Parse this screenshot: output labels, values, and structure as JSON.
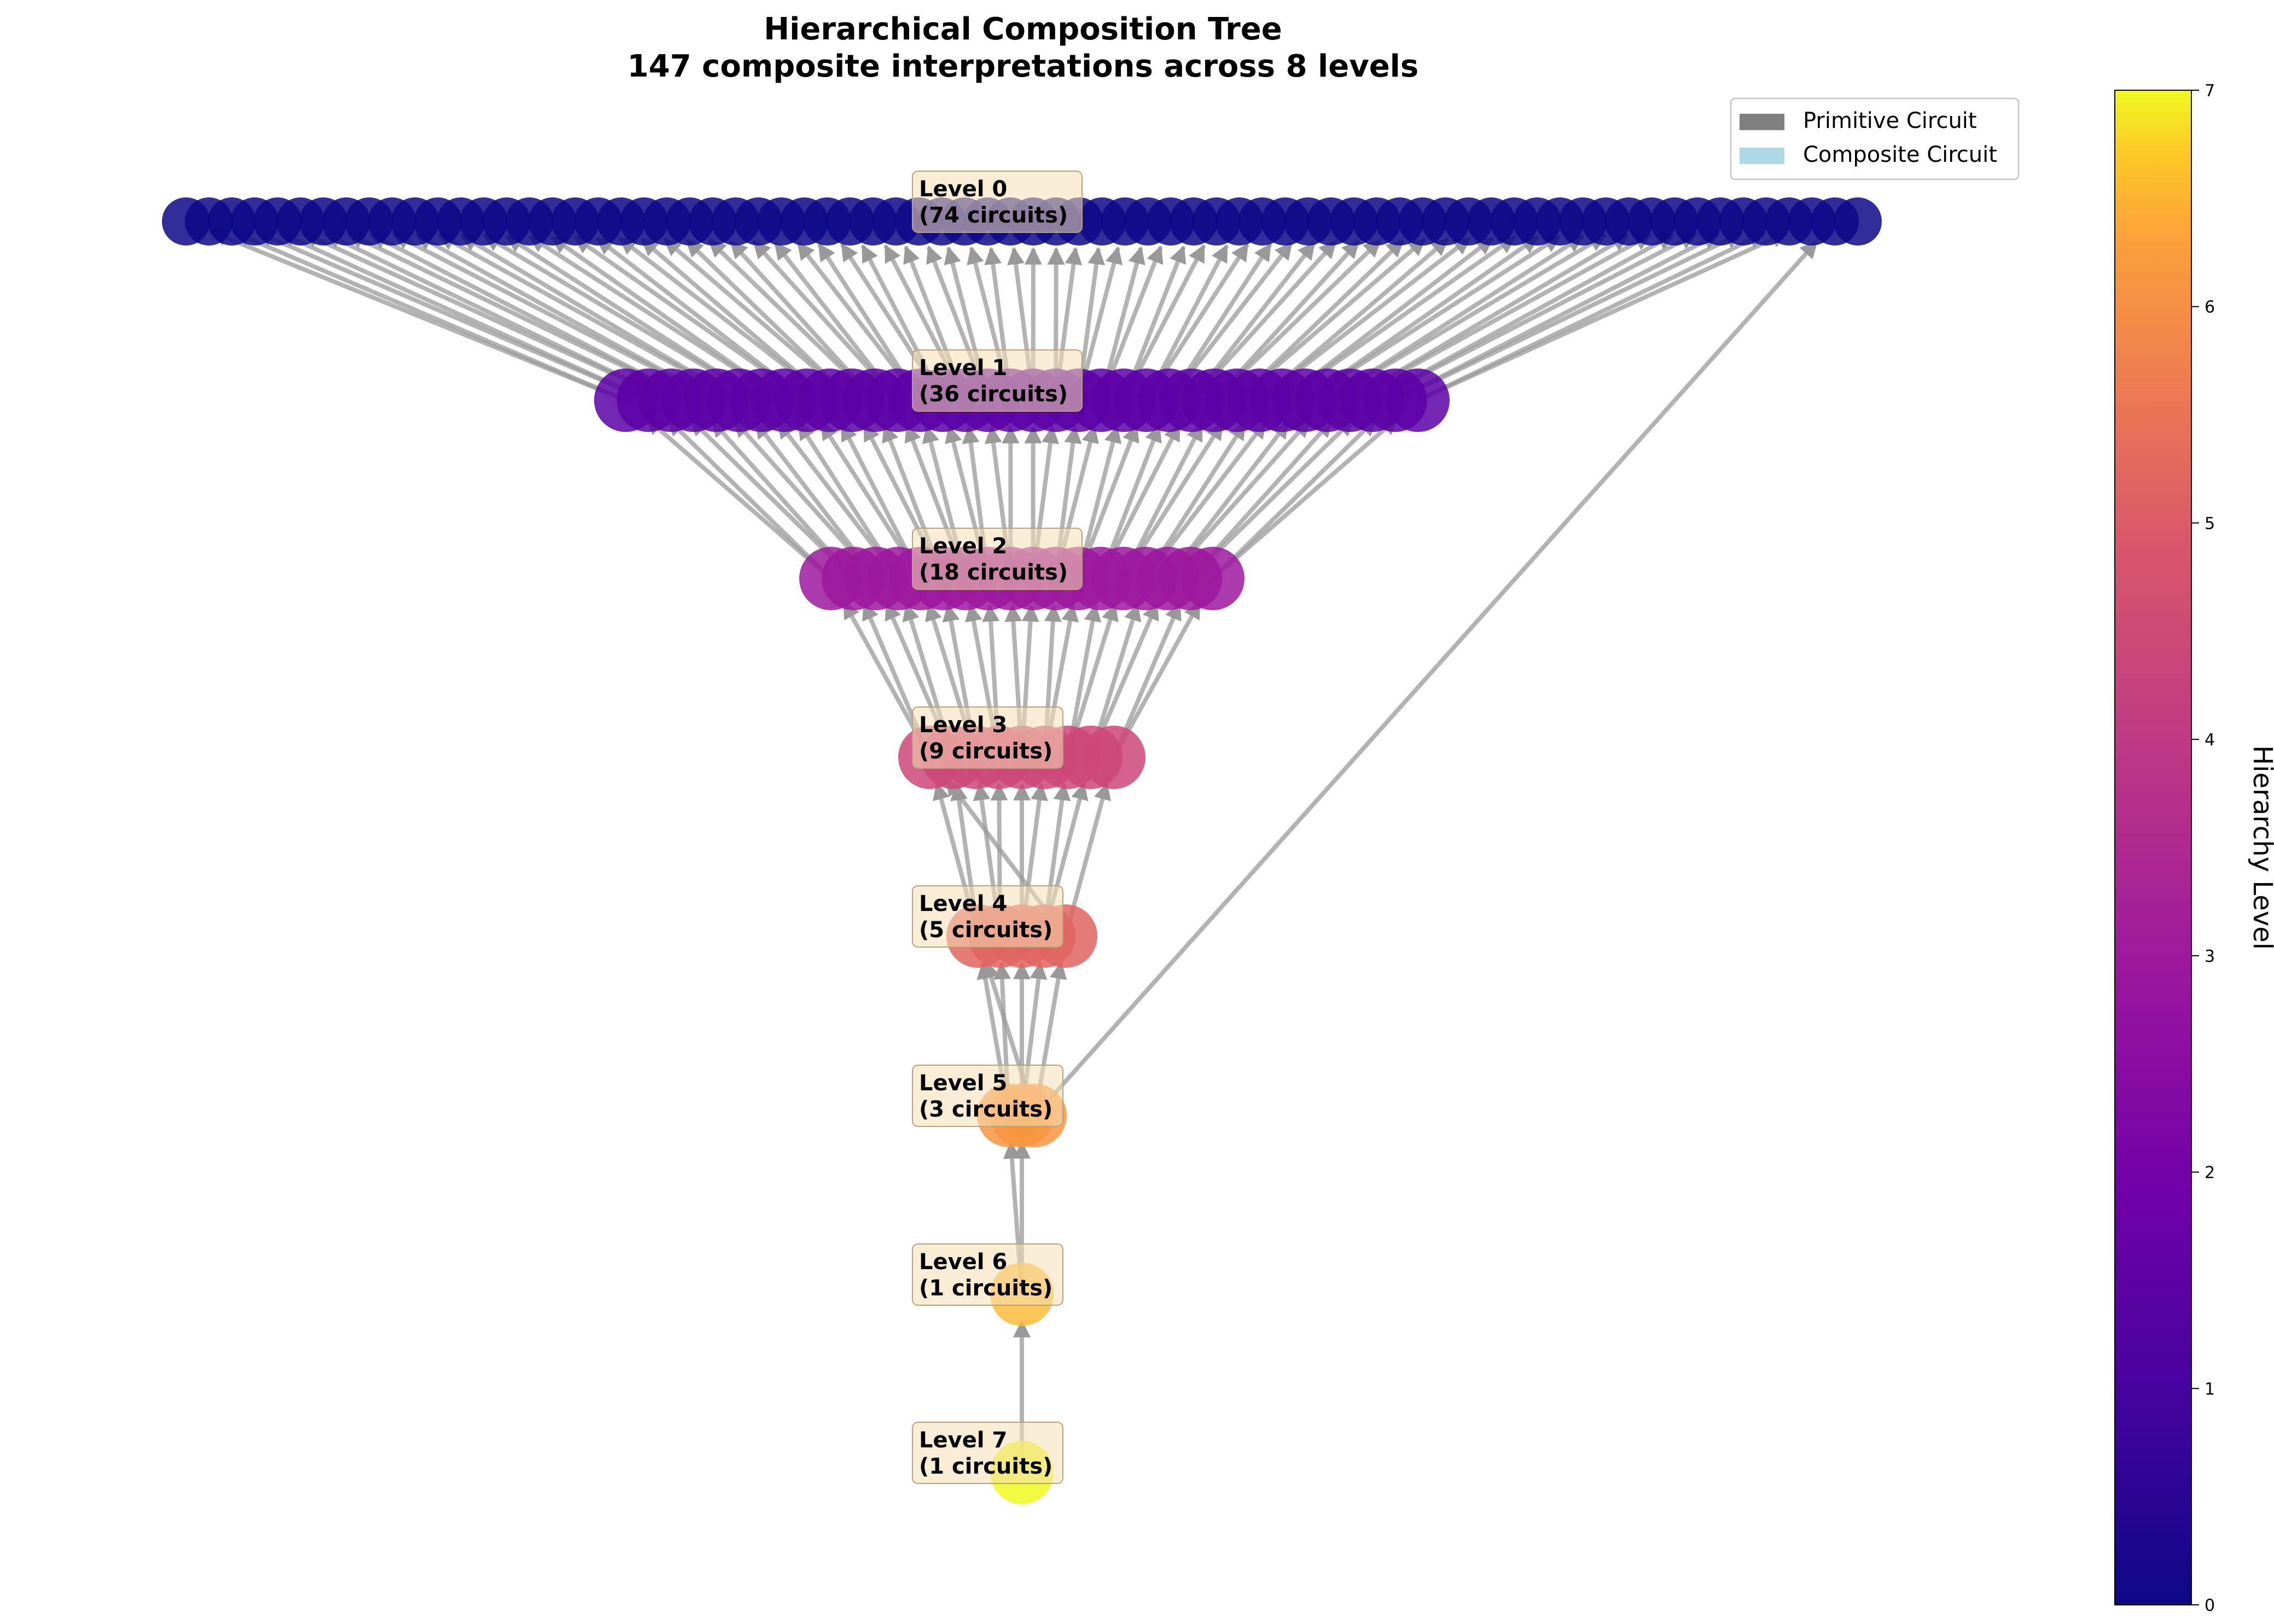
{
  "title": "Hierarchical Composition Tree",
  "subtitle": "147 composite interpretations across 8 levels",
  "legend": {
    "items": [
      {
        "label": "Primitive Circuit",
        "color": "#808080"
      },
      {
        "label": "Composite Circuit",
        "color": "#add8e6"
      }
    ]
  },
  "colorbar": {
    "label": "Hierarchy Level",
    "ticks": [
      "0",
      "1",
      "2",
      "3",
      "4",
      "5",
      "6",
      "7"
    ],
    "range": [
      0,
      7
    ],
    "colormap": "plasma"
  },
  "levels": [
    {
      "line1": "Level 0",
      "line2": "(74 circuits)",
      "count": 74,
      "color": "#0d0887"
    },
    {
      "line1": "Level 1",
      "line2": "(36 circuits)",
      "count": 36,
      "color": "#5c01a6"
    },
    {
      "line1": "Level 2",
      "line2": "(18 circuits)",
      "count": 18,
      "color": "#9c179e"
    },
    {
      "line1": "Level 3",
      "line2": "(9 circuits)",
      "count": 9,
      "color": "#cc4778"
    },
    {
      "line1": "Level 4",
      "line2": "(5 circuits)",
      "count": 5,
      "color": "#e16462"
    },
    {
      "line1": "Level 5",
      "line2": "(3 circuits)",
      "count": 3,
      "color": "#f89540"
    },
    {
      "line1": "Level 6",
      "line2": "(1 circuits)",
      "count": 1,
      "color": "#fbbb3b"
    },
    {
      "line1": "Level 7",
      "line2": "(1 circuits)",
      "count": 1,
      "color": "#f0f921"
    }
  ],
  "colors": {
    "edge": "#999999",
    "label_box_fill": "#f5deb3",
    "label_box_stroke": "#b8a27a"
  }
}
